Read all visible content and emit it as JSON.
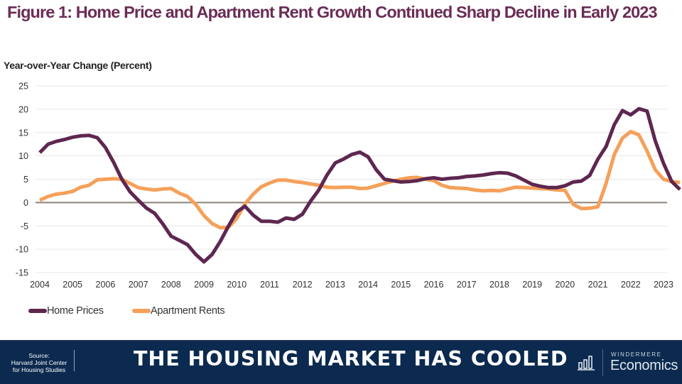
{
  "title": "Figure 1: Home Price and Apartment Rent Growth Continued Sharp Decline in Early 2023",
  "colors": {
    "title": "#6b2c55",
    "home_prices": "#5e2750",
    "apartment_rents": "#f5a05a",
    "zero_line": "#8c8279",
    "gridline": "#e6e6e6",
    "footer_bg": "#0c2a4f"
  },
  "footer": {
    "source_lines": [
      "Source:",
      "Harvard Joint Center",
      "for Housing Studies"
    ],
    "headline": "THE HOUSING MARKET HAS COOLED",
    "brand_top": "WINDERMERE",
    "brand_main": "Economics",
    "logo_icon": "bar-chart-icon"
  },
  "chart_data": {
    "type": "line",
    "title": "Figure 1: Home Price and Apartment Rent Growth Continued Sharp Decline in Early 2023",
    "xlabel": "",
    "ylabel": "Year-over-Year Change (Percent)",
    "ylim": [
      -15,
      25
    ],
    "yticks": [
      25,
      20,
      15,
      10,
      5,
      0,
      -5,
      -10,
      -15
    ],
    "xlim": [
      2004,
      2023
    ],
    "xticks": [
      "2004",
      "2005",
      "2006",
      "2007",
      "2008",
      "2009",
      "2010",
      "2011",
      "2012",
      "2013",
      "2014",
      "2015",
      "2016",
      "2017",
      "2018",
      "2019",
      "2020",
      "2021",
      "2022",
      "2023"
    ],
    "grid": true,
    "legend_position": "bottom-left",
    "x_frequency": "quarterly",
    "x_start": 2004.0,
    "x_step": 0.25,
    "series": [
      {
        "name": "Home Prices",
        "values": [
          10.7,
          12.5,
          13.1,
          13.5,
          14.0,
          14.3,
          14.4,
          13.9,
          11.8,
          8.6,
          5.0,
          2.3,
          0.5,
          -1.2,
          -2.3,
          -4.6,
          -7.2,
          -8.1,
          -9.0,
          -11.1,
          -12.7,
          -11.1,
          -8.3,
          -5.0,
          -2.0,
          -0.8,
          -2.7,
          -4.0,
          -4.0,
          -4.2,
          -3.3,
          -3.6,
          -2.5,
          0.3,
          2.7,
          5.9,
          8.5,
          9.3,
          10.3,
          10.8,
          9.8,
          7.0,
          5.0,
          4.7,
          4.4,
          4.5,
          4.7,
          5.1,
          5.3,
          5.0,
          5.2,
          5.3,
          5.6,
          5.7,
          5.9,
          6.2,
          6.4,
          6.3,
          5.7,
          4.8,
          3.9,
          3.5,
          3.2,
          3.2,
          3.6,
          4.4,
          4.6,
          5.8,
          9.3,
          12.0,
          16.7,
          19.7,
          18.8,
          20.1,
          19.6,
          13.2,
          8.4,
          4.5,
          2.8
        ],
        "label_note": "approximate values read from chart"
      },
      {
        "name": "Apartment Rents",
        "values": [
          0.5,
          1.3,
          1.8,
          2.0,
          2.4,
          3.3,
          3.7,
          4.9,
          5.0,
          5.1,
          5.0,
          4.1,
          3.2,
          2.9,
          2.7,
          2.9,
          3.0,
          2.0,
          1.3,
          -0.4,
          -2.8,
          -4.5,
          -5.4,
          -5.3,
          -3.4,
          -0.3,
          1.8,
          3.4,
          4.2,
          4.8,
          4.8,
          4.5,
          4.3,
          4.0,
          3.7,
          3.3,
          3.2,
          3.3,
          3.3,
          3.0,
          3.1,
          3.6,
          4.1,
          4.6,
          5.0,
          5.3,
          5.4,
          5.0,
          4.7,
          3.7,
          3.2,
          3.1,
          3.0,
          2.7,
          2.5,
          2.6,
          2.5,
          2.9,
          3.3,
          3.2,
          3.1,
          3.0,
          2.9,
          2.7,
          2.6,
          -0.4,
          -1.3,
          -1.2,
          -0.9,
          4.1,
          10.3,
          13.8,
          15.2,
          14.5,
          11.0,
          7.0,
          5.0,
          4.5,
          4.3
        ],
        "label_note": "approximate values read from chart"
      }
    ]
  }
}
